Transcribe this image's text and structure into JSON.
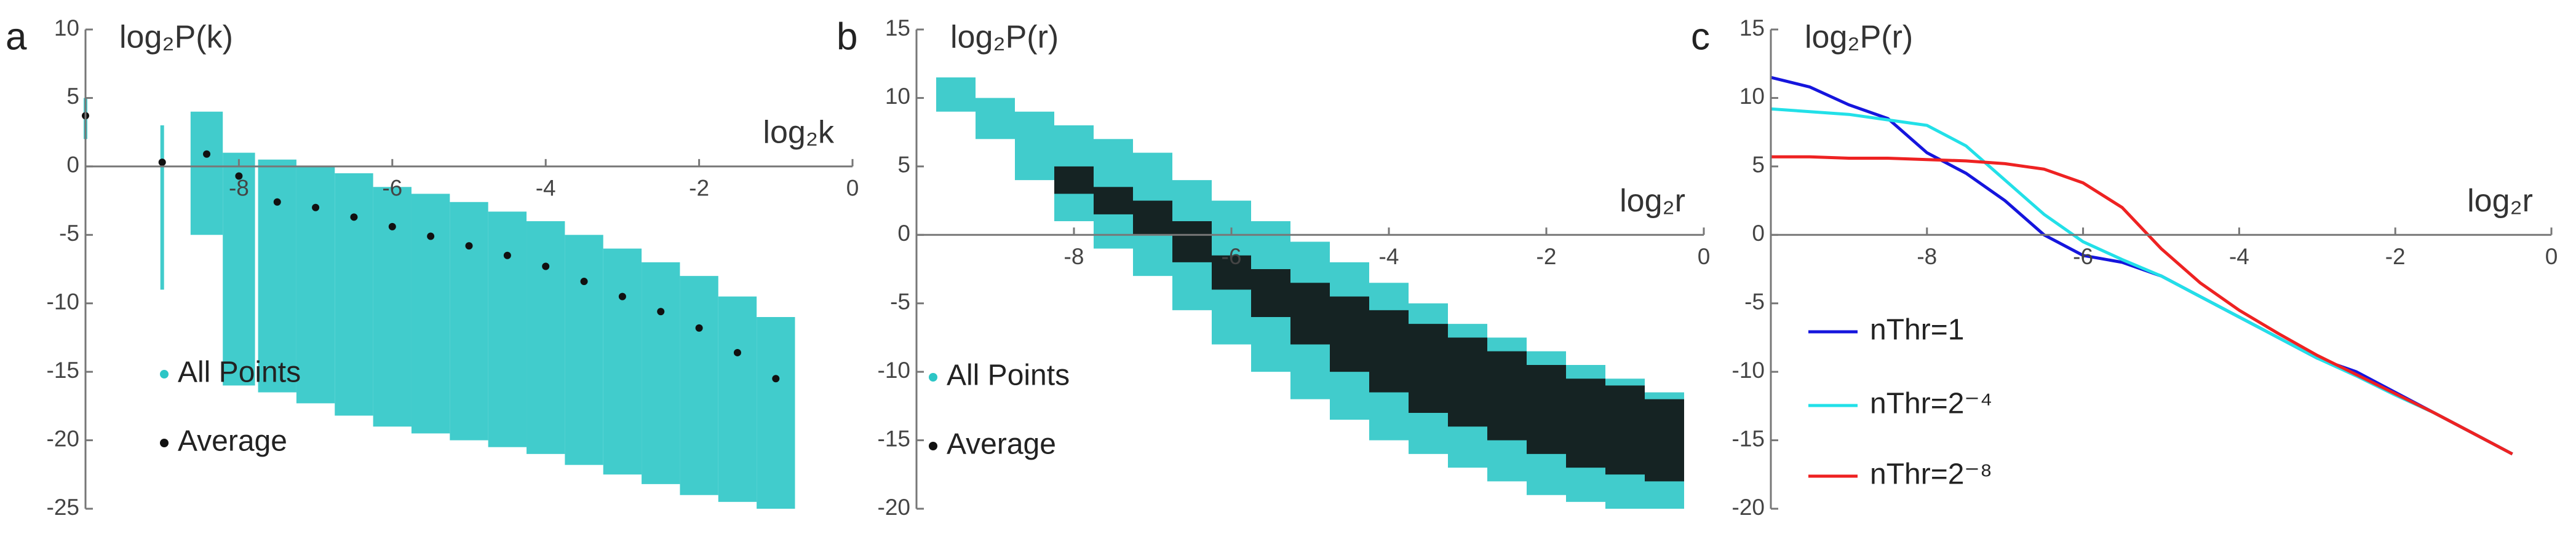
{
  "chart_data": [
    {
      "type": "scatter",
      "label": "a",
      "x_label": "log₂k",
      "y_label": "log₂P(k)",
      "xlim": [
        -10,
        0
      ],
      "ylim": [
        -25,
        10
      ],
      "xticks": [
        -8,
        -6,
        -4,
        -2,
        0
      ],
      "yticks": [
        10,
        5,
        0,
        -5,
        -10,
        -15,
        -20,
        -25
      ],
      "legend": "lower left",
      "series": [
        {
          "name": "All Points",
          "color": "#2cc6c6",
          "x": [
            -10,
            -9,
            -8.42,
            -8,
            -7.5,
            -7,
            -6.5,
            -6,
            -5.5,
            -5,
            -4.5,
            -4,
            -3.5,
            -3,
            -2.5,
            -2,
            -1.5,
            -1
          ],
          "low": [
            2,
            -9,
            -5,
            -16,
            -16.5,
            -17.3,
            -18.2,
            -19,
            -19.5,
            -20,
            -20.5,
            -21,
            -21.8,
            -22.5,
            -23.2,
            -24,
            -24.5,
            -25
          ],
          "high": [
            5,
            3,
            4,
            1,
            0.5,
            0,
            -0.5,
            -1.5,
            -2,
            -2.6,
            -3.3,
            -4,
            -5,
            -6,
            -7,
            -8,
            -9.5,
            -11
          ]
        },
        {
          "name": "Average",
          "color": "#111111",
          "x": [
            -10,
            -9,
            -8.42,
            -8,
            -7.5,
            -7,
            -6.5,
            -6,
            -5.5,
            -5,
            -4.5,
            -4,
            -3.5,
            -3,
            -2.5,
            -2,
            -1.5,
            -1
          ],
          "values": [
            3.7,
            0.3,
            0.9,
            -0.7,
            -2.6,
            -3.0,
            -3.7,
            -4.4,
            -5.1,
            -5.8,
            -6.5,
            -7.3,
            -8.4,
            -9.5,
            -10.6,
            -11.8,
            -13.6,
            -15.5
          ]
        }
      ]
    },
    {
      "type": "scatter",
      "label": "b",
      "x_label": "log₂r",
      "y_label": "log₂P(r)",
      "xlim": [
        -10,
        0
      ],
      "ylim": [
        -20,
        15
      ],
      "xticks": [
        -8,
        -6,
        -4,
        -2,
        0
      ],
      "yticks": [
        15,
        10,
        5,
        0,
        -5,
        -10,
        -15,
        -20
      ],
      "legend": "lower left",
      "series": [
        {
          "name": "All Points",
          "color": "#2cc6c6",
          "x": [
            -9.5,
            -9,
            -8.5,
            -8,
            -7.5,
            -7,
            -6.5,
            -6,
            -5.5,
            -5,
            -4.5,
            -4,
            -3.5,
            -3,
            -2.5,
            -2,
            -1.5,
            -1,
            -0.5
          ],
          "low": [
            9,
            7,
            4,
            1,
            -1,
            -3,
            -5.5,
            -8,
            -10,
            -12,
            -13.5,
            -15,
            -16,
            -17,
            -18,
            -19,
            -19.5,
            -20,
            -20
          ],
          "high": [
            11.5,
            10,
            9,
            8,
            7,
            6,
            4,
            2.5,
            1,
            -0.5,
            -2,
            -3.5,
            -5,
            -6.5,
            -7.5,
            -8.5,
            -9.5,
            -10.5,
            -11.5
          ]
        },
        {
          "name": "Average",
          "color": "#111111",
          "x": [
            -8,
            -7.5,
            -7,
            -6.5,
            -6,
            -5.5,
            -5,
            -4.5,
            -4,
            -3.5,
            -3,
            -2.5,
            -2,
            -1.5,
            -1,
            -0.5
          ],
          "low": [
            3,
            1.5,
            0,
            -2,
            -4,
            -6,
            -8,
            -10,
            -11.5,
            -13,
            -14,
            -15,
            -16,
            -17,
            -17.5,
            -18
          ],
          "high": [
            5,
            3.5,
            2.5,
            1,
            -1.5,
            -2.5,
            -3.5,
            -4.5,
            -5.5,
            -6.5,
            -7.5,
            -8.5,
            -9.5,
            -10.5,
            -11,
            -12
          ]
        }
      ]
    },
    {
      "type": "line",
      "label": "c",
      "x_label": "log₂r",
      "y_label": "log₂P(r)",
      "xlim": [
        -10,
        0
      ],
      "ylim": [
        -20,
        15
      ],
      "xticks": [
        -8,
        -6,
        -4,
        -2,
        0
      ],
      "yticks": [
        15,
        10,
        5,
        0,
        -5,
        -10,
        -15,
        -20
      ],
      "legend": "lower left",
      "x": [
        -10,
        -9.5,
        -9,
        -8.5,
        -8,
        -7.5,
        -7,
        -6.5,
        -6,
        -5.5,
        -5,
        -4.5,
        -4,
        -3.5,
        -3,
        -2.5,
        -2,
        -1.5,
        -1,
        -0.5
      ],
      "series": [
        {
          "name": "nThr=1",
          "color": "#1515dd",
          "values": [
            11.5,
            10.8,
            9.5,
            8.5,
            6,
            4.5,
            2.5,
            0,
            -1.5,
            -2,
            -3,
            -4.5,
            -6,
            -7.5,
            -9,
            -10,
            -11.5,
            -13,
            -14.5,
            -16
          ]
        },
        {
          "name": "nThr=2⁻⁴",
          "color": "#22e0e8",
          "values": [
            9.2,
            9,
            8.8,
            8.4,
            8,
            6.5,
            4,
            1.5,
            -0.5,
            -1.8,
            -3,
            -4.5,
            -6,
            -7.5,
            -9,
            -10.3,
            -11.7,
            -13,
            -14.5,
            -16
          ]
        },
        {
          "name": "nThr=2⁻⁸",
          "color": "#ee2222",
          "values": [
            5.7,
            5.7,
            5.6,
            5.6,
            5.5,
            5.4,
            5.2,
            4.8,
            3.8,
            2,
            -1,
            -3.5,
            -5.5,
            -7.2,
            -8.8,
            -10.2,
            -11.6,
            -13,
            -14.5,
            -16
          ]
        }
      ]
    }
  ]
}
